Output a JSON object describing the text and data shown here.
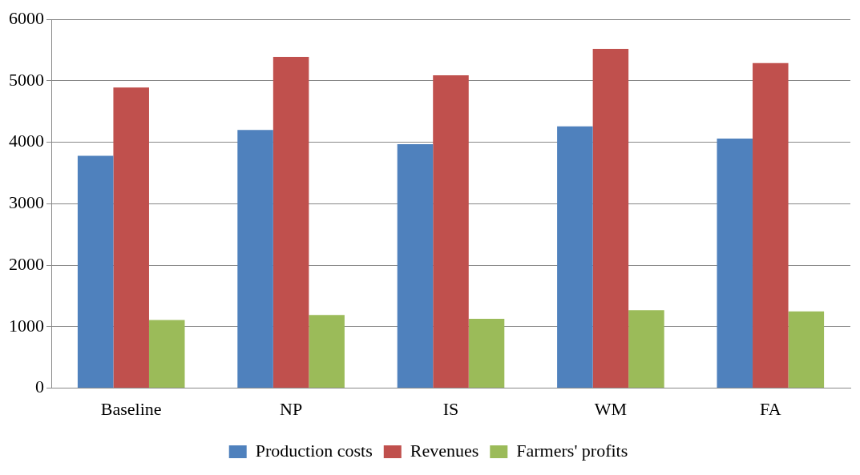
{
  "chart_data": {
    "type": "bar",
    "categories": [
      "Baseline",
      "NP",
      "IS",
      "WM",
      "FA"
    ],
    "series": [
      {
        "name": "Production costs",
        "color": "#4f81bd",
        "values": [
          3780,
          4200,
          3970,
          4260,
          4060
        ]
      },
      {
        "name": "Revenues",
        "color": "#c0504d",
        "values": [
          4890,
          5390,
          5090,
          5520,
          5290
        ]
      },
      {
        "name": "Farmers' profits",
        "color": "#9bbb59",
        "values": [
          1110,
          1190,
          1130,
          1270,
          1250
        ]
      }
    ],
    "ylim": [
      0,
      6000
    ],
    "yticks": [
      0,
      1000,
      2000,
      3000,
      4000,
      5000,
      6000
    ],
    "grid": "y",
    "legend": "bottom"
  }
}
